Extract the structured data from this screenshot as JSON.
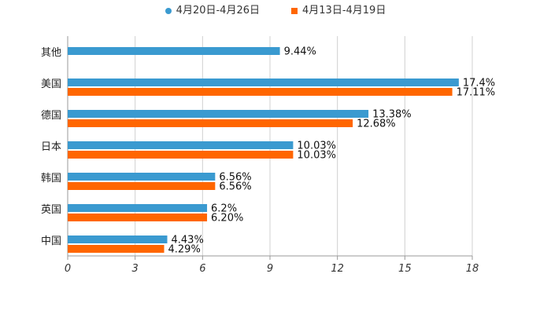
{
  "chart_data": {
    "type": "bar",
    "orientation": "horizontal",
    "categories": [
      "其他",
      "美国",
      "德国",
      "日本",
      "韩国",
      "英国",
      "中国"
    ],
    "series": [
      {
        "name": "4月20日-4月26日",
        "color": "#3A9AD0",
        "values": [
          9.44,
          17.4,
          13.38,
          10.03,
          6.56,
          6.2,
          4.43
        ],
        "labels": [
          "9.44%",
          "17.4%",
          "13.38%",
          "10.03%",
          "6.56%",
          "6.2%",
          "4.43%"
        ]
      },
      {
        "name": "4月13日-4月19日",
        "color": "#FF6600",
        "values": [
          null,
          17.11,
          12.68,
          10.03,
          6.56,
          6.2,
          4.29
        ],
        "labels": [
          "",
          "17.11%",
          "12.68%",
          "10.03%",
          "6.56%",
          "6.20%",
          "4.29%"
        ]
      }
    ],
    "xlim": [
      0,
      18
    ],
    "xticks": [
      "0",
      "3",
      "6",
      "9",
      "12",
      "15",
      "18"
    ],
    "grid": true,
    "legend_position": "top-center",
    "title": "",
    "xlabel": "",
    "ylabel": ""
  }
}
